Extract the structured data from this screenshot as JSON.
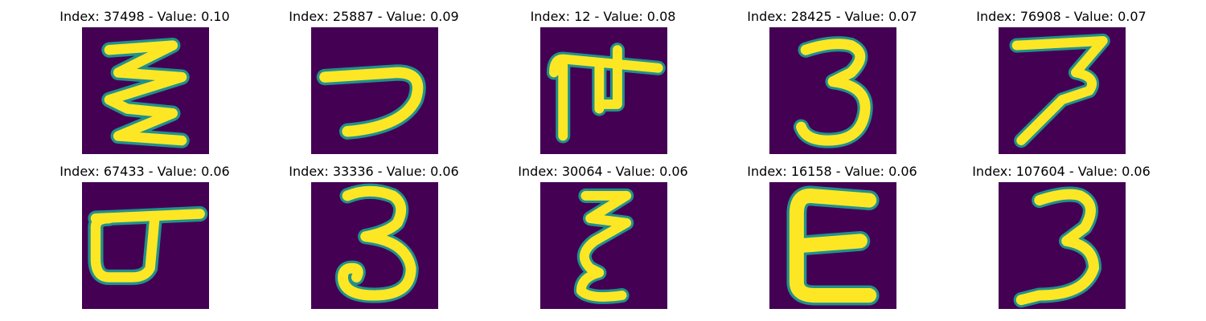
{
  "figure": {
    "panels": [
      {
        "index": "37498",
        "value": "0.10",
        "title": "Index: 37498 - Value: 0.10",
        "glyph": "zigzag-script-glyph"
      },
      {
        "index": "25887",
        "value": "0.09",
        "title": "Index: 25887 - Value: 0.09",
        "glyph": "hook-script-glyph"
      },
      {
        "index": "12",
        "value": "0.08",
        "title": "Index: 12 - Value: 0.08",
        "glyph": "gate-script-glyph"
      },
      {
        "index": "28425",
        "value": "0.07",
        "title": "Index: 28425 - Value: 0.07",
        "glyph": "digit-three-glyph"
      },
      {
        "index": "76908",
        "value": "0.07",
        "title": "Index: 76908 - Value: 0.07",
        "glyph": "seven-like-glyph"
      },
      {
        "index": "67433",
        "value": "0.06",
        "title": "Index: 67433 - Value: 0.06",
        "glyph": "loop-bar-script-glyph"
      },
      {
        "index": "33336",
        "value": "0.06",
        "title": "Index: 33336 - Value: 0.06",
        "glyph": "digit-three-curl-glyph"
      },
      {
        "index": "30064",
        "value": "0.06",
        "title": "Index: 30064 - Value: 0.06",
        "glyph": "narrow-script-glyph"
      },
      {
        "index": "16158",
        "value": "0.06",
        "title": "Index: 16158 - Value: 0.06",
        "glyph": "epsilon-like-glyph"
      },
      {
        "index": "107604",
        "value": "0.06",
        "title": "Index: 107604 - Value: 0.06",
        "glyph": "digit-three-glyph"
      }
    ],
    "colors": {
      "background": "#440154",
      "stroke": "#fde725",
      "edge": "#21918c"
    }
  }
}
